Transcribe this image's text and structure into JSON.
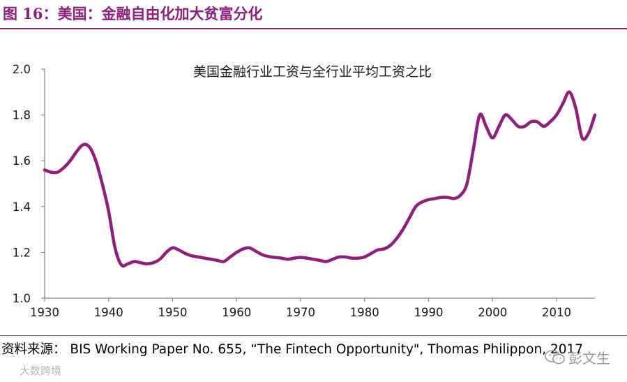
{
  "figure": {
    "title": "图 16：美国：金融自由化加大贫富分化",
    "source": "资料来源： BIS Working Paper No. 655, “The Fintech Opportunity\", Thomas Philippon, 2017",
    "watermark_left": "大数跨境",
    "watermark_right": "彭文生",
    "accent_color": "#8e1f7c"
  },
  "chart_data": {
    "type": "line",
    "title": "美国金融行业工资与全行业平均工资之比",
    "xlabel": "",
    "ylabel": "",
    "xlim": [
      1930,
      2016
    ],
    "ylim": [
      1.0,
      2.0
    ],
    "x_ticks": [
      "1930",
      "1940",
      "1950",
      "1960",
      "1970",
      "1980",
      "1990",
      "2000",
      "2010"
    ],
    "y_ticks": [
      "1.0",
      "1.2",
      "1.4",
      "1.6",
      "1.8",
      "2.0"
    ],
    "grid": false,
    "legend": "none",
    "series": [
      {
        "color": "#8e1f7c",
        "x": [
          1930,
          1931,
          1932,
          1933,
          1934,
          1935,
          1936,
          1937,
          1938,
          1939,
          1940,
          1941,
          1942,
          1943,
          1944,
          1945,
          1946,
          1947,
          1948,
          1949,
          1950,
          1951,
          1952,
          1953,
          1954,
          1955,
          1956,
          1957,
          1958,
          1959,
          1960,
          1961,
          1962,
          1963,
          1964,
          1965,
          1966,
          1967,
          1968,
          1969,
          1970,
          1971,
          1972,
          1973,
          1974,
          1975,
          1976,
          1977,
          1978,
          1979,
          1980,
          1981,
          1982,
          1983,
          1984,
          1985,
          1986,
          1987,
          1988,
          1989,
          1990,
          1991,
          1992,
          1993,
          1994,
          1995,
          1996,
          1997,
          1998,
          1999,
          2000,
          2001,
          2002,
          2003,
          2004,
          2005,
          2006,
          2007,
          2008,
          2009,
          2010,
          2011,
          2012,
          2013,
          2014,
          2015,
          2016
        ],
        "y": [
          1.56,
          1.55,
          1.55,
          1.57,
          1.6,
          1.64,
          1.67,
          1.66,
          1.6,
          1.5,
          1.38,
          1.22,
          1.145,
          1.15,
          1.16,
          1.155,
          1.15,
          1.155,
          1.17,
          1.2,
          1.22,
          1.21,
          1.195,
          1.185,
          1.18,
          1.175,
          1.17,
          1.165,
          1.16,
          1.18,
          1.2,
          1.215,
          1.22,
          1.205,
          1.19,
          1.182,
          1.178,
          1.175,
          1.17,
          1.175,
          1.178,
          1.175,
          1.17,
          1.165,
          1.16,
          1.17,
          1.18,
          1.18,
          1.175,
          1.175,
          1.18,
          1.195,
          1.21,
          1.215,
          1.23,
          1.26,
          1.3,
          1.35,
          1.4,
          1.42,
          1.43,
          1.435,
          1.44,
          1.44,
          1.435,
          1.45,
          1.5,
          1.65,
          1.8,
          1.75,
          1.7,
          1.75,
          1.8,
          1.78,
          1.75,
          1.75,
          1.77,
          1.77,
          1.75,
          1.77,
          1.8,
          1.85,
          1.9,
          1.83,
          1.7,
          1.72,
          1.8
        ]
      }
    ]
  }
}
